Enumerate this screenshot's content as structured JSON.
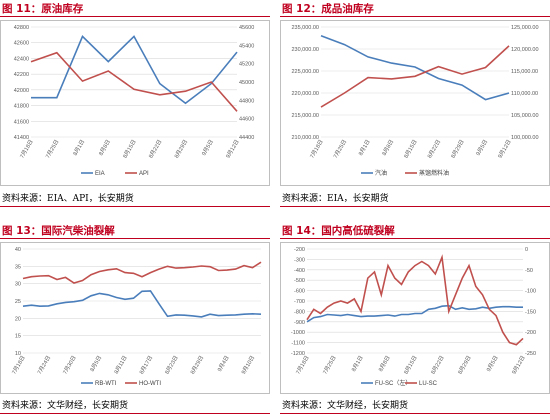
{
  "panels": [
    {
      "title": "图 11：原油库存",
      "source": "资料来源：EIA、API，长安期货",
      "chart": {
        "type": "line",
        "categories": [
          "7月18日",
          "7月25日",
          "8月1日",
          "8月8日",
          "8月15日",
          "8月22日",
          "8月29日",
          "9月5日",
          "9月12日"
        ],
        "yleft_ticks": [
          "42800",
          "42600",
          "42400",
          "42200",
          "42000",
          "41800",
          "41600",
          "41400"
        ],
        "yright_ticks": [
          "45600",
          "45400",
          "45200",
          "45000",
          "44800",
          "44600",
          "44400"
        ],
        "ylim_left": [
          41400,
          42800
        ],
        "ylim_right": [
          44400,
          45600
        ],
        "series": [
          {
            "name": "EIA",
            "axis": "left",
            "color": "#4a7ebb",
            "values": [
              41900,
              41900,
              42680,
              42360,
              42680,
              42080,
              41830,
              42080,
              42480
            ]
          },
          {
            "name": "API",
            "axis": "right",
            "color": "#c0504d",
            "values": [
              45220,
              45320,
              45010,
              45120,
              44920,
              44860,
              44900,
              45000,
              44680
            ]
          }
        ]
      }
    },
    {
      "title": "图 12：成品油库存",
      "source": "资料来源：EIA，长安期货",
      "chart": {
        "type": "line",
        "categories": [
          "7月18日",
          "7月25日",
          "8月1日",
          "8月8日",
          "8月15日",
          "8月22日",
          "8月29日",
          "9月5日",
          "9月12日"
        ],
        "yleft_ticks": [
          "235,000.00",
          "230,000.00",
          "225,000.00",
          "220,000.00",
          "215,000.00",
          "210,000.00"
        ],
        "yright_ticks": [
          "125,000.00",
          "120,000.00",
          "115,000.00",
          "110,000.00",
          "105,000.00",
          "100,000.00"
        ],
        "ylim_left": [
          210000,
          235000
        ],
        "ylim_right": [
          100000,
          125000
        ],
        "series": [
          {
            "name": "汽油",
            "axis": "left",
            "color": "#4a7ebb",
            "values": [
              233000,
              231000,
              228200,
              226800,
              225900,
              223300,
              221800,
              218500,
              220000
            ]
          },
          {
            "name": "蒸馏燃料油",
            "axis": "right",
            "color": "#c0504d",
            "values": [
              106800,
              110000,
              113500,
              113200,
              113800,
              116000,
              114300,
              115800,
              120700
            ]
          }
        ]
      }
    },
    {
      "title": "图 13：国际汽柴油裂解",
      "source": "资料来源：文华财经，长安期货",
      "chart": {
        "type": "line",
        "categories": [
          "7月18日",
          "",
          "",
          "7月24日",
          "",
          "",
          "7月30日",
          "",
          "",
          "8月5日",
          "",
          "",
          "8月11日",
          "",
          "",
          "8月17日",
          "",
          "",
          "8月23日",
          "",
          "",
          "8月29日",
          "",
          "",
          "9月4日",
          "",
          "",
          "9月10日",
          ""
        ],
        "yleft_ticks": [
          "40",
          "35",
          "30",
          "25",
          "20",
          "15",
          "10"
        ],
        "ylim_left": [
          10,
          40
        ],
        "series": [
          {
            "name": "RB-WTI",
            "axis": "left",
            "color": "#4a7ebb",
            "values": [
              23.5,
              23.8,
              23.5,
              23.6,
              24.2,
              24.6,
              24.8,
              25.2,
              26.5,
              27.2,
              26.8,
              26.0,
              25.5,
              25.8,
              27.8,
              27.9,
              24.2,
              20.6,
              21.0,
              20.9,
              20.7,
              20.4,
              21.2,
              20.8,
              20.9,
              21.0,
              21.2,
              21.3,
              21.2
            ]
          },
          {
            "name": "HO-WTI",
            "axis": "left",
            "color": "#c0504d",
            "values": [
              31.5,
              32.0,
              32.2,
              32.3,
              31.2,
              31.8,
              30.2,
              30.9,
              32.6,
              33.5,
              34.0,
              34.3,
              33.2,
              33.0,
              32.0,
              33.2,
              34.2,
              35.0,
              34.5,
              34.6,
              34.8,
              35.1,
              34.9,
              33.8,
              33.9,
              34.2,
              35.2,
              34.6,
              36.2
            ]
          }
        ]
      }
    },
    {
      "title": "图 14：国内高低硫裂解",
      "source": "资料来源：文华财经，长安期货",
      "chart": {
        "type": "line",
        "categories": [
          "7月18日",
          "",
          "",
          "",
          "7月25日",
          "",
          "",
          "",
          "8月1日",
          "",
          "",
          "",
          "8月8日",
          "",
          "",
          "",
          "8月15日",
          "",
          "",
          "",
          "8月22日",
          "",
          "",
          "",
          "8月29日",
          "",
          "",
          "",
          "9月5日",
          "",
          "",
          "",
          "9月12日"
        ],
        "yleft_ticks": [
          "-200",
          "-300",
          "-400",
          "-500",
          "-600",
          "-700",
          "-800",
          "-900",
          "-1000",
          "-1100",
          "-1200"
        ],
        "yright_ticks": [
          "0",
          "-50",
          "-100",
          "-150",
          "-200",
          "-250"
        ],
        "ylim_left": [
          -1200,
          -200
        ],
        "ylim_right": [
          -250,
          0
        ],
        "series": [
          {
            "name": "FU-SC（左）",
            "axis": "left",
            "color": "#4a7ebb",
            "values": [
              -900,
              -860,
              -850,
              -830,
              -835,
              -840,
              -830,
              -840,
              -850,
              -845,
              -845,
              -840,
              -835,
              -845,
              -830,
              -830,
              -820,
              -820,
              -780,
              -770,
              -750,
              -745,
              -780,
              -765,
              -780,
              -775,
              -760,
              -770,
              -760,
              -755,
              -755,
              -760,
              -760
            ]
          },
          {
            "name": "LU-SC",
            "axis": "right",
            "color": "#c0504d",
            "values": [
              -170,
              -145,
              -155,
              -140,
              -130,
              -125,
              -130,
              -120,
              -150,
              -70,
              -55,
              -110,
              -40,
              -70,
              -85,
              -55,
              -40,
              -30,
              -40,
              -60,
              -20,
              -150,
              -110,
              -70,
              -40,
              -90,
              -110,
              -145,
              -160,
              -200,
              -225,
              -230,
              -215
            ]
          }
        ]
      }
    }
  ]
}
